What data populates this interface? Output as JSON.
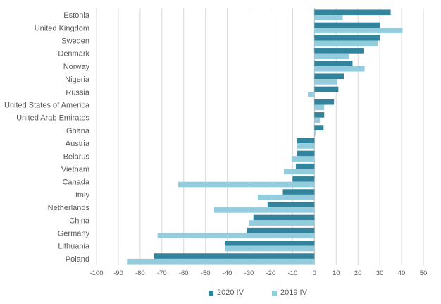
{
  "chart_data": {
    "type": "bar",
    "orientation": "horizontal",
    "categories": [
      "Estonia",
      "United Kingdom",
      "Sweden",
      "Denmark",
      "Norway",
      "Nigeria",
      "Russia",
      "United States of America",
      "United Arab Emirates",
      "Ghana",
      "Austria",
      "Belarus",
      "Vietnam",
      "Canada",
      "Italy",
      "Netherlands",
      "China",
      "Germany",
      "Lithuania",
      "Poland"
    ],
    "series": [
      {
        "name": "2020 IV",
        "color": "#31849b",
        "values": [
          35,
          30,
          30,
          22.5,
          17.5,
          13.5,
          11,
          9,
          4.5,
          4.2,
          -8,
          -8,
          -8.5,
          -10,
          -14.5,
          -21.5,
          -28,
          -31,
          -41,
          -73.5
        ]
      },
      {
        "name": "2019 IV",
        "color": "#93cddd",
        "values": [
          13,
          40.5,
          29,
          16,
          23,
          10.5,
          -3,
          4.5,
          2.5,
          0.5,
          -8,
          -10.5,
          -14,
          -62.5,
          -26,
          -46,
          -30,
          -72,
          -41,
          -86
        ]
      }
    ],
    "xlim": [
      -100,
      50
    ],
    "xticks": [
      "-100",
      "-90",
      "-80",
      "-70",
      "-60",
      "-50",
      "-40",
      "-30",
      "-20",
      "-10",
      "0",
      "10",
      "20",
      "30",
      "40",
      "50"
    ],
    "grid": "vertical",
    "legend_position": "bottom"
  }
}
